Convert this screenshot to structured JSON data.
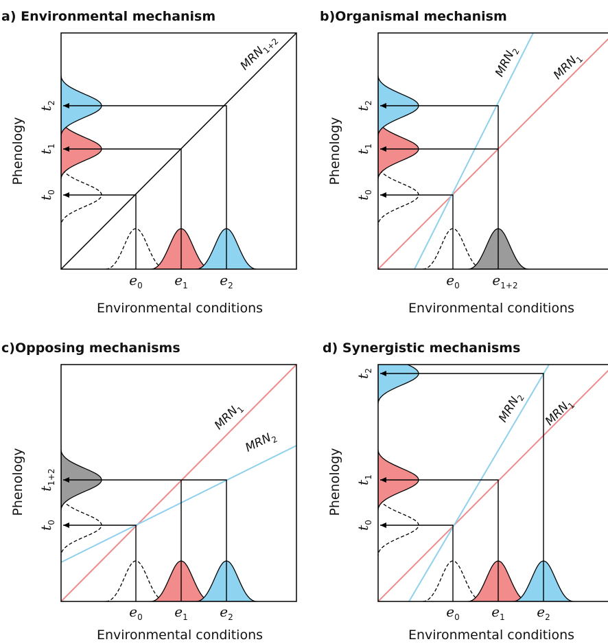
{
  "colors": {
    "red": "#f28c8c",
    "blue": "#8ed3f0",
    "gray": "#9b9b9b",
    "redLine": "#ef8a8a",
    "blueLine": "#8fd0ec"
  },
  "shared": {
    "x_label": "Environmental conditions",
    "y_label": "Phenology"
  },
  "panels": {
    "a": {
      "title": "a) Environmental mechanism",
      "e_labels": [
        {
          "base": "e",
          "sub": "0"
        },
        {
          "base": "e",
          "sub": "1"
        },
        {
          "base": "e",
          "sub": "2"
        }
      ],
      "t_labels": [
        {
          "base": "t",
          "sub": "0"
        },
        {
          "base": "t",
          "sub": "1"
        },
        {
          "base": "t",
          "sub": "2"
        }
      ],
      "line_labels": [
        {
          "base": "MRN",
          "sub": "1+2"
        }
      ]
    },
    "b": {
      "title": "b)Organismal mechanism",
      "e_labels": [
        {
          "base": "e",
          "sub": "0"
        },
        {
          "base": "e",
          "sub": "1+2"
        }
      ],
      "t_labels": [
        {
          "base": "t",
          "sub": "0"
        },
        {
          "base": "t",
          "sub": "1"
        },
        {
          "base": "t",
          "sub": "2"
        }
      ],
      "line_labels": [
        {
          "base": "MRN",
          "sub": "2"
        },
        {
          "base": "MRN",
          "sub": "1"
        }
      ]
    },
    "c": {
      "title": "c)Opposing mechanisms",
      "e_labels": [
        {
          "base": "e",
          "sub": "0"
        },
        {
          "base": "e",
          "sub": "1"
        },
        {
          "base": "e",
          "sub": "2"
        }
      ],
      "t_labels": [
        {
          "base": "t",
          "sub": "0"
        },
        {
          "base": "t",
          "sub": "1+2"
        }
      ],
      "line_labels": [
        {
          "base": "MRN",
          "sub": "1"
        },
        {
          "base": "MRN",
          "sub": "2"
        }
      ]
    },
    "d": {
      "title": "d) Synergistic mechanisms",
      "e_labels": [
        {
          "base": "e",
          "sub": "0"
        },
        {
          "base": "e",
          "sub": "1"
        },
        {
          "base": "e",
          "sub": "2"
        }
      ],
      "t_labels": [
        {
          "base": "t",
          "sub": "0"
        },
        {
          "base": "t",
          "sub": "1"
        },
        {
          "base": "t",
          "sub": "2"
        }
      ],
      "line_labels": [
        {
          "base": "MRN",
          "sub": "2"
        },
        {
          "base": "MRN",
          "sub": "1"
        }
      ]
    }
  }
}
